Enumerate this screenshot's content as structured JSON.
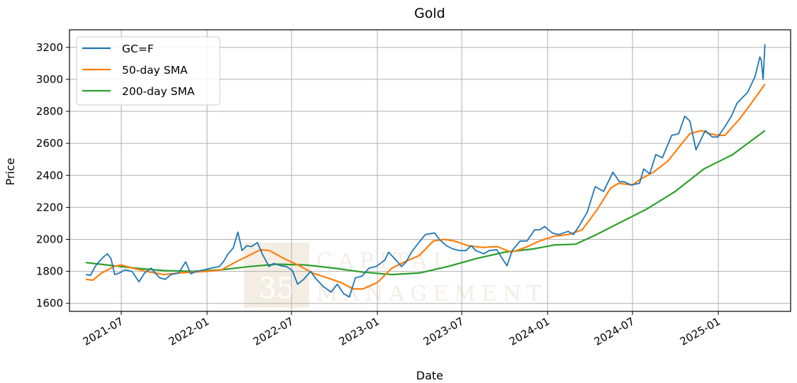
{
  "chart_data": {
    "type": "line",
    "title": "Gold",
    "xlabel": "Date",
    "ylabel": "Price",
    "ylim": [
      1550,
      3310
    ],
    "xlim": [
      "2021-03-12",
      "2025-06-05"
    ],
    "grid": true,
    "legend_position": "top-left",
    "x_ticks": [
      "2021-07-01",
      "2022-01-01",
      "2022-07-01",
      "2023-01-01",
      "2023-07-01",
      "2024-01-01",
      "2024-07-01",
      "2025-01-01"
    ],
    "x_tick_labels": [
      "2021-07",
      "2022-01",
      "2022-07",
      "2023-01",
      "2023-07",
      "2024-01",
      "2024-07",
      "2025-01"
    ],
    "y_ticks": [
      1600,
      1800,
      2000,
      2200,
      2400,
      2600,
      2800,
      3000,
      3200
    ],
    "y_tick_labels": [
      "1600",
      "1800",
      "2000",
      "2200",
      "2400",
      "2600",
      "2800",
      "3000",
      "3200"
    ],
    "series": [
      {
        "name": "GC=F",
        "color": "#1f77b4",
        "x": [
          "2021-04-16",
          "2021-04-26",
          "2021-05-06",
          "2021-05-14",
          "2021-05-24",
          "2021-06-01",
          "2021-06-09",
          "2021-06-17",
          "2021-06-27",
          "2021-07-09",
          "2021-07-24",
          "2021-08-08",
          "2021-08-20",
          "2021-09-03",
          "2021-09-21",
          "2021-10-03",
          "2021-10-16",
          "2021-11-01",
          "2021-11-16",
          "2021-11-27",
          "2021-12-09",
          "2021-12-26",
          "2022-01-09",
          "2022-01-27",
          "2022-02-05",
          "2022-02-15",
          "2022-02-26",
          "2022-03-08",
          "2022-03-17",
          "2022-03-27",
          "2022-04-06",
          "2022-04-19",
          "2022-04-30",
          "2022-05-14",
          "2022-05-24",
          "2022-06-08",
          "2022-06-20",
          "2022-07-03",
          "2022-07-14",
          "2022-07-27",
          "2022-08-11",
          "2022-08-22",
          "2022-09-07",
          "2022-09-24",
          "2022-10-07",
          "2022-10-21",
          "2022-11-02",
          "2022-11-15",
          "2022-11-29",
          "2022-12-14",
          "2022-12-29",
          "2023-01-17",
          "2023-01-25",
          "2023-02-07",
          "2023-02-22",
          "2023-03-04",
          "2023-03-15",
          "2023-03-31",
          "2023-04-14",
          "2023-05-04",
          "2023-05-14",
          "2023-05-29",
          "2023-06-12",
          "2023-06-26",
          "2023-07-10",
          "2023-07-21",
          "2023-07-31",
          "2023-08-17",
          "2023-08-29",
          "2023-09-14",
          "2023-09-28",
          "2023-10-06",
          "2023-10-17",
          "2023-11-03",
          "2023-11-18",
          "2023-12-04",
          "2023-12-15",
          "2023-12-26",
          "2024-01-11",
          "2024-01-25",
          "2024-02-14",
          "2024-02-25",
          "2024-03-08",
          "2024-03-26",
          "2024-04-12",
          "2024-04-30",
          "2024-05-20",
          "2024-06-03",
          "2024-06-13",
          "2024-06-28",
          "2024-07-16",
          "2024-07-25",
          "2024-08-07",
          "2024-08-20",
          "2024-09-03",
          "2024-09-23",
          "2024-10-08",
          "2024-10-21",
          "2024-11-01",
          "2024-11-14",
          "2024-12-04",
          "2024-12-19",
          "2024-12-31",
          "2025-01-14",
          "2025-01-29",
          "2025-02-10",
          "2025-02-23",
          "2025-03-05",
          "2025-03-13",
          "2025-03-21",
          "2025-03-31",
          "2025-04-03",
          "2025-04-07",
          "2025-04-11"
        ],
        "values": [
          1780,
          1775,
          1830,
          1860,
          1890,
          1910,
          1880,
          1780,
          1790,
          1810,
          1800,
          1735,
          1790,
          1820,
          1760,
          1750,
          1780,
          1790,
          1860,
          1785,
          1800,
          1810,
          1820,
          1830,
          1860,
          1910,
          1945,
          2045,
          1930,
          1960,
          1955,
          1980,
          1905,
          1830,
          1850,
          1835,
          1830,
          1805,
          1720,
          1750,
          1800,
          1755,
          1705,
          1670,
          1720,
          1660,
          1640,
          1760,
          1770,
          1820,
          1830,
          1870,
          1920,
          1880,
          1830,
          1860,
          1920,
          1980,
          2030,
          2040,
          2000,
          1960,
          1940,
          1930,
          1930,
          1960,
          1930,
          1910,
          1930,
          1935,
          1870,
          1835,
          1930,
          1990,
          1990,
          2060,
          2060,
          2080,
          2040,
          2030,
          2050,
          2030,
          2080,
          2170,
          2330,
          2300,
          2420,
          2360,
          2360,
          2340,
          2350,
          2440,
          2410,
          2530,
          2510,
          2650,
          2660,
          2770,
          2740,
          2560,
          2680,
          2640,
          2640,
          2700,
          2770,
          2850,
          2890,
          2920,
          2970,
          3020,
          3140,
          3120,
          3000,
          3220
        ]
      },
      {
        "name": "50-day SMA",
        "color": "#ff7f0e",
        "x": [
          "2021-04-16",
          "2021-05-01",
          "2021-05-20",
          "2021-06-15",
          "2021-07-01",
          "2021-08-01",
          "2021-09-01",
          "2021-10-01",
          "2021-11-01",
          "2021-12-01",
          "2022-01-01",
          "2022-02-01",
          "2022-03-01",
          "2022-04-01",
          "2022-04-25",
          "2022-05-15",
          "2022-06-15",
          "2022-07-15",
          "2022-08-15",
          "2022-09-15",
          "2022-10-15",
          "2022-11-10",
          "2022-12-01",
          "2023-01-01",
          "2023-02-01",
          "2023-03-01",
          "2023-04-01",
          "2023-05-01",
          "2023-05-25",
          "2023-06-15",
          "2023-07-15",
          "2023-08-15",
          "2023-09-15",
          "2023-10-15",
          "2023-11-15",
          "2023-12-15",
          "2024-01-15",
          "2024-02-15",
          "2024-03-15",
          "2024-04-15",
          "2024-05-15",
          "2024-06-01",
          "2024-07-01",
          "2024-07-20",
          "2024-08-15",
          "2024-09-15",
          "2024-10-15",
          "2024-11-01",
          "2024-11-25",
          "2024-12-15",
          "2025-01-01",
          "2025-01-15",
          "2025-02-15",
          "2025-03-15",
          "2025-04-11"
        ],
        "values": [
          1750,
          1745,
          1790,
          1830,
          1840,
          1815,
          1795,
          1780,
          1790,
          1795,
          1800,
          1810,
          1855,
          1900,
          1935,
          1930,
          1880,
          1840,
          1790,
          1760,
          1730,
          1690,
          1690,
          1730,
          1820,
          1860,
          1900,
          1990,
          2000,
          1990,
          1960,
          1950,
          1955,
          1920,
          1950,
          1990,
          2020,
          2030,
          2060,
          2180,
          2320,
          2350,
          2340,
          2380,
          2420,
          2490,
          2600,
          2660,
          2680,
          2660,
          2650,
          2650,
          2750,
          2860,
          2970
        ]
      },
      {
        "name": "200-day SMA",
        "color": "#2ca02c",
        "x": [
          "2021-04-16",
          "2021-06-01",
          "2021-08-01",
          "2021-10-01",
          "2021-12-01",
          "2022-02-01",
          "2022-04-01",
          "2022-06-01",
          "2022-08-01",
          "2022-10-01",
          "2022-12-01",
          "2023-02-01",
          "2023-04-01",
          "2023-06-01",
          "2023-08-01",
          "2023-10-01",
          "2023-12-01",
          "2024-01-15",
          "2024-03-01",
          "2024-04-15",
          "2024-06-01",
          "2024-08-01",
          "2024-10-01",
          "2024-12-01",
          "2025-02-01",
          "2025-04-11"
        ],
        "values": [
          1855,
          1840,
          1820,
          1805,
          1800,
          1810,
          1830,
          1845,
          1840,
          1820,
          1795,
          1780,
          1790,
          1830,
          1880,
          1920,
          1940,
          1965,
          1970,
          2030,
          2100,
          2190,
          2300,
          2440,
          2530,
          2680
        ]
      }
    ]
  },
  "watermark": {
    "badge": "35",
    "line1": "CAPITAL",
    "line2": "MANAGEMENT"
  }
}
